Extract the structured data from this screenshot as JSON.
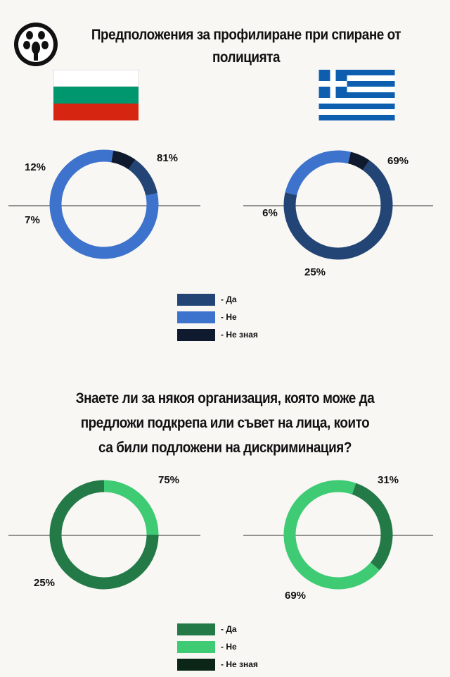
{
  "logo": {
    "name": "organization-logo"
  },
  "section1": {
    "title_line1": "Предположения за профилиране при спиране от",
    "title_line2": "полицията",
    "flags": [
      {
        "name": "bulgaria-flag",
        "colors": [
          "#ffffff",
          "#00966e",
          "#d62612"
        ]
      },
      {
        "name": "greece-flag",
        "colors": [
          "#0d5eaf",
          "#ffffff"
        ]
      }
    ],
    "legend": [
      {
        "label": "- Да",
        "color": "#234575"
      },
      {
        "label": "- Не",
        "color": "#3e73cd"
      },
      {
        "label": "- Не зная",
        "color": "#0f1a2e"
      }
    ]
  },
  "section2": {
    "title_line1": "Знаете ли за някоя организация, която може да",
    "title_line2": "предложи подкрепа или съвет на лица, които",
    "title_line3": "са били подложени на дискриминация?",
    "legend": [
      {
        "label": "- Да",
        "color": "#247a47"
      },
      {
        "label": "- Не",
        "color": "#3ecb74"
      },
      {
        "label": "- Не зная",
        "color": "#0b2616"
      }
    ]
  },
  "chart_data": [
    {
      "type": "pie",
      "country": "Bulgaria",
      "categories": [
        "Да",
        "Не",
        "Не зная"
      ],
      "values": [
        12,
        81,
        7
      ],
      "labels": [
        "12%",
        "81%",
        "7%"
      ],
      "colors": [
        "#234575",
        "#3e73cd",
        "#0f1a2e"
      ]
    },
    {
      "type": "pie",
      "country": "Greece",
      "categories": [
        "Да",
        "Не",
        "Не зная"
      ],
      "values": [
        69,
        25,
        6
      ],
      "labels": [
        "69%",
        "25%",
        "6%"
      ],
      "colors": [
        "#234575",
        "#3e73cd",
        "#0f1a2e"
      ]
    },
    {
      "type": "pie",
      "country": "Bulgaria",
      "categories": [
        "Да",
        "Не",
        "Не зная"
      ],
      "values": [
        75,
        25,
        0
      ],
      "labels": [
        "75%",
        "25%"
      ],
      "colors": [
        "#247a47",
        "#3ecb74",
        "#0b2616"
      ]
    },
    {
      "type": "pie",
      "country": "Greece",
      "categories": [
        "Да",
        "Не",
        "Не зная"
      ],
      "values": [
        31,
        69,
        0
      ],
      "labels": [
        "31%",
        "69%"
      ],
      "colors": [
        "#247a47",
        "#3ecb74",
        "#0b2616"
      ]
    }
  ]
}
